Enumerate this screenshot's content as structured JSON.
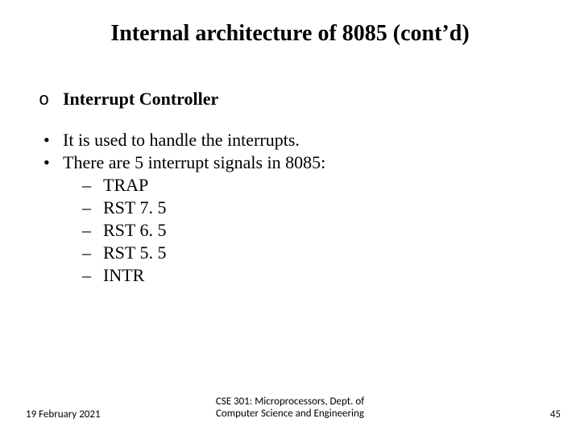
{
  "title": {
    "text": "Internal architecture of 8085 (cont’d)",
    "fontsize": 28
  },
  "section": {
    "marker": "o",
    "label": "Interrupt Controller",
    "fontsize": 22
  },
  "bullets": {
    "fontsize": 22,
    "marker": "•",
    "items": [
      "It is used to handle the interrupts.",
      "There are 5 interrupt signals in 8085:"
    ]
  },
  "dashes": {
    "fontsize": 22,
    "marker": "–",
    "items": [
      "TRAP",
      "RST 7. 5",
      "RST 6. 5",
      "RST 5. 5",
      "INTR"
    ]
  },
  "footer": {
    "fontsize": 13,
    "date": "19 February 2021",
    "course_line1": "CSE 301: Microprocessors, Dept. of",
    "course_line2": "Computer Science and Engineering",
    "page": "45"
  },
  "colors": {
    "text": "#000000",
    "background": "#ffffff"
  }
}
